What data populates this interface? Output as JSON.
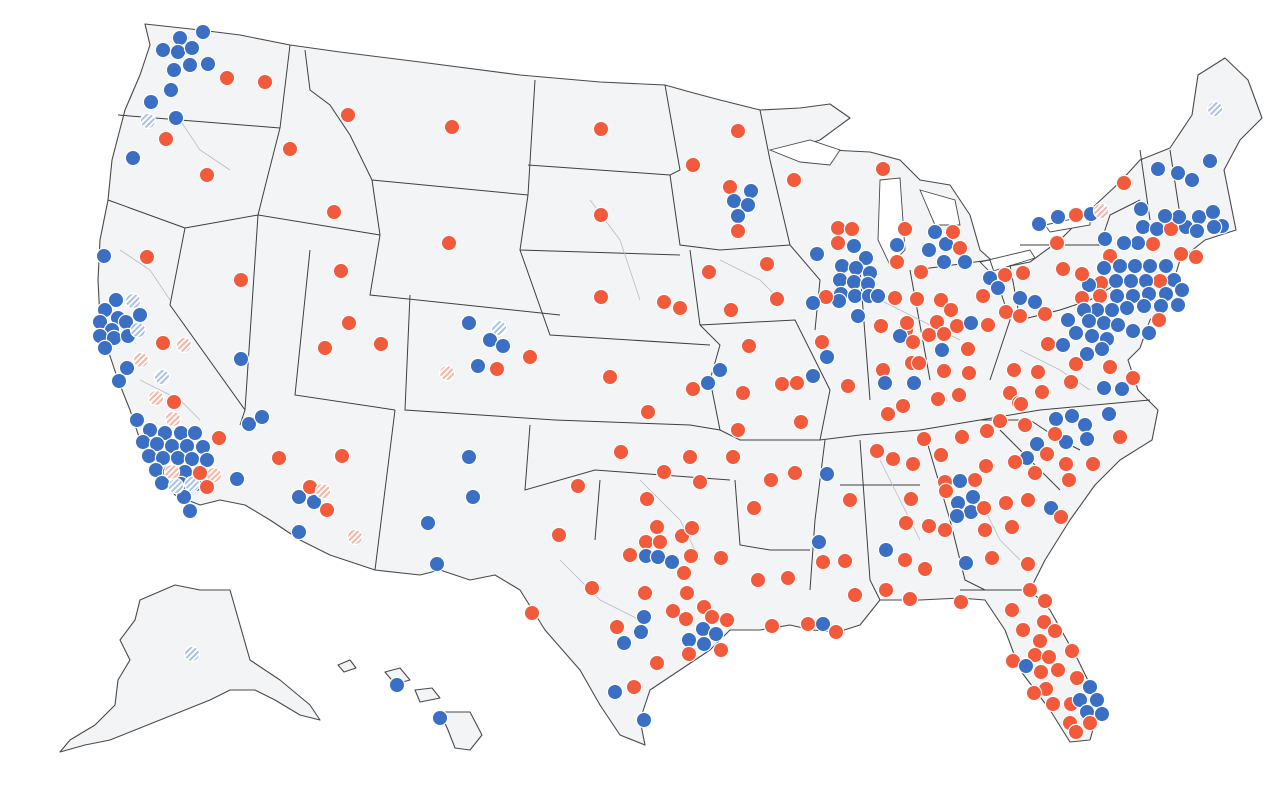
{
  "map": {
    "name": "congressional-district-dot-map",
    "colors": {
      "dem": "#3a6fc4",
      "rep": "#f25a3c",
      "dem_lean": "#a9c1ea",
      "rep_lean": "#f7b3a4",
      "land": "#f3f4f6",
      "state_border": "#3f3f3f",
      "district_border": "#b8bcc4"
    },
    "legend_categories": [
      "dem",
      "rep",
      "dem_lean",
      "rep_lean"
    ],
    "regions": [
      "contiguous-us",
      "alaska",
      "hawaii"
    ]
  }
}
